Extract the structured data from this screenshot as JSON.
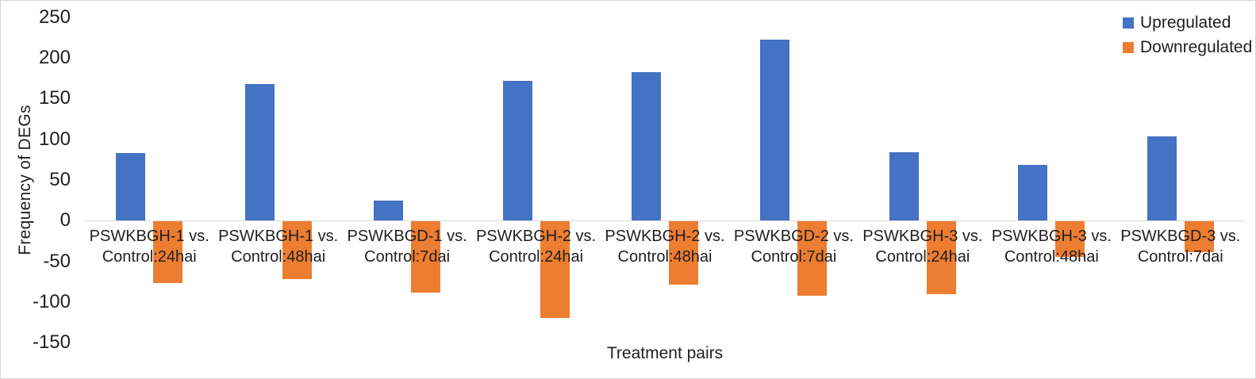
{
  "chart_data": {
    "type": "bar",
    "title": "",
    "xlabel": "Treatment pairs",
    "ylabel": "Frequency of DEGs",
    "ylim": [
      -150,
      250
    ],
    "ytick_step": 50,
    "yticks": [
      250,
      200,
      150,
      100,
      50,
      0,
      -50,
      -100,
      -150
    ],
    "grid": false,
    "legend_position": "top-right",
    "axis_line_color": "#d9d9d9",
    "text_color": "#1f1f1f",
    "categories": [
      {
        "label": "PSWKBGH-1 vs. Control:24hai",
        "lines": [
          "PSWKBGH-1 vs.",
          "Control:24hai"
        ]
      },
      {
        "label": "PSWKBGH-1 vs. Control:48hai",
        "lines": [
          "PSWKBGH-1 vs.",
          "Control:48hai"
        ]
      },
      {
        "label": "PSWKBGD-1 vs. Control:7dai",
        "lines": [
          "PSWKBGD-1 vs.",
          "Control:7dai"
        ]
      },
      {
        "label": "PSWKBGH-2 vs. Control:24hai",
        "lines": [
          "PSWKBGH-2 vs.",
          "Control:24hai"
        ]
      },
      {
        "label": "PSWKBGH-2 vs. Control:48hai",
        "lines": [
          "PSWKBGH-2 vs.",
          "Control:48hai"
        ]
      },
      {
        "label": "PSWKBGD-2 vs. Control:7dai",
        "lines": [
          "PSWKBGD-2 vs.",
          "Control:7dai"
        ]
      },
      {
        "label": "PSWKBGH-3 vs. Control:24hai",
        "lines": [
          "PSWKBGH-3 vs.",
          "Control:24hai"
        ]
      },
      {
        "label": "PSWKBGH-3 vs. Control:48hai",
        "lines": [
          "PSWKBGH-3 vs.",
          "Control:48hai"
        ]
      },
      {
        "label": "PSWKBGD-3 vs. Control:7dai",
        "lines": [
          "PSWKBGD-3 vs.",
          "Control:7dai"
        ]
      }
    ],
    "series": [
      {
        "name": "Upregulated",
        "color": "#4472C4",
        "values": [
          83,
          168,
          25,
          172,
          183,
          223,
          84,
          69,
          104
        ]
      },
      {
        "name": "Downregulated",
        "color": "#ED7D31",
        "values": [
          -76,
          -71,
          -87,
          -119,
          -78,
          -91,
          -89,
          -44,
          -38
        ]
      }
    ]
  }
}
